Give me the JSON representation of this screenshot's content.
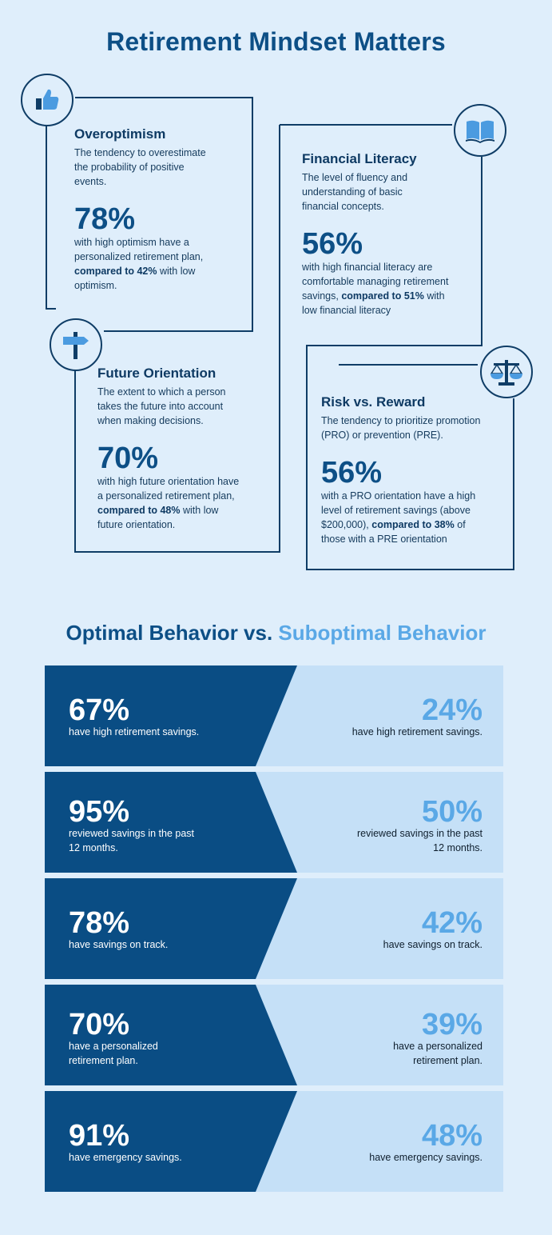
{
  "title": "Retirement Mindset Matters",
  "cards": {
    "overoptimism": {
      "heading": "Overoptimism",
      "desc_lines": [
        "The tendency to overestimate",
        "the probability of positive",
        "events."
      ],
      "stat": "78%",
      "s1": "with high optimism have a",
      "s2": "personalized retirement plan,",
      "s3_bold": "compared to 42%",
      "s3_rest": " with low",
      "s4": "optimism.",
      "icon": "thumbs-up-icon"
    },
    "financial_literacy": {
      "heading": "Financial Literacy",
      "desc_lines": [
        "The level of fluency and",
        "understanding of basic",
        "financial concepts."
      ],
      "stat": "56%",
      "s1": "with high financial literacy are",
      "s2": "comfortable managing retirement",
      "s3_pre": "savings, ",
      "s3_bold": "compared to 51%",
      "s3_rest": " with",
      "s4": "low financial literacy",
      "icon": "book-icon"
    },
    "future_orientation": {
      "heading": "Future Orientation",
      "desc_lines": [
        "The extent to which a person",
        "takes the future into account",
        "when making decisions."
      ],
      "stat": "70%",
      "s1": "with high future orientation have",
      "s2": "a personalized retirement plan,",
      "s3_bold": "compared to 48%",
      "s3_rest": " with low",
      "s4": "future orientation.",
      "icon": "signpost-icon"
    },
    "risk_reward": {
      "heading": "Risk vs. Reward",
      "desc_lines": [
        "The tendency to prioritize promotion",
        "(PRO) or prevention (PRE)."
      ],
      "stat": "56%",
      "s1": "with a PRO orientation have a high",
      "s2": "level of retirement savings (above",
      "s3_pre": "$200,000), ",
      "s3_bold": "compared to 38%",
      "s3_rest": " of",
      "s4": "those with a PRE orientation",
      "icon": "scales-icon"
    }
  },
  "behavior": {
    "title_dark": "Optimal Behavior vs.",
    "title_light": "Suboptimal Behavior",
    "rows": [
      {
        "opt": "67%",
        "opt_l1": "have high retirement savings.",
        "opt_l2": "",
        "sub": "24%",
        "sub_l1": "have high retirement savings.",
        "sub_l2": ""
      },
      {
        "opt": "95%",
        "opt_l1": "reviewed savings in the past",
        "opt_l2": "12 months.",
        "sub": "50%",
        "sub_l1": "reviewed savings in the past",
        "sub_l2": "12 months."
      },
      {
        "opt": "78%",
        "opt_l1": "have savings on track.",
        "opt_l2": "",
        "sub": "42%",
        "sub_l1": "have savings on track.",
        "sub_l2": ""
      },
      {
        "opt": "70%",
        "opt_l1": "have a personalized",
        "opt_l2": "retirement plan.",
        "sub": "39%",
        "sub_l1": "have a personalized",
        "sub_l2": "retirement plan."
      },
      {
        "opt": "91%",
        "opt_l1": "have emergency savings.",
        "opt_l2": "",
        "sub": "48%",
        "sub_l1": "have emergency savings.",
        "sub_l2": ""
      }
    ]
  },
  "colors": {
    "background": "#dfeefb",
    "dark_navy": "#0a4d84",
    "light_blue": "#5aa8e6",
    "pale_panel": "#c5e0f7"
  }
}
